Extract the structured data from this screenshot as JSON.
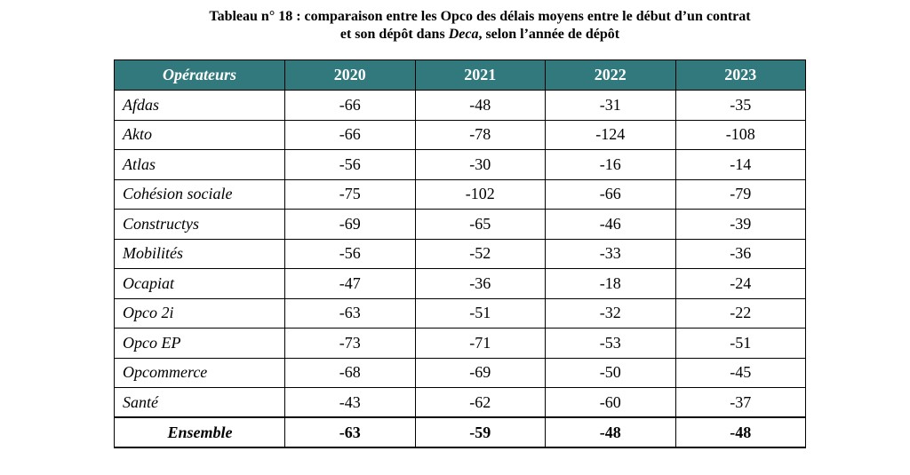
{
  "title": {
    "line1": "Tableau n° 18 : comparaison entre les Opco des délais moyens entre le début d’un contrat",
    "line2_prefix": "et son dépôt dans ",
    "line2_italic": "Deca",
    "line2_suffix": ", selon l’année de dépôt"
  },
  "table": {
    "headers": [
      "Opérateurs",
      "2020",
      "2021",
      "2022",
      "2023"
    ],
    "rows": [
      {
        "op": "Afdas",
        "v": [
          "-66",
          "-48",
          "-31",
          "-35"
        ]
      },
      {
        "op": "Akto",
        "v": [
          "-66",
          "-78",
          "-124",
          "-108"
        ]
      },
      {
        "op": "Atlas",
        "v": [
          "-56",
          "-30",
          "-16",
          "-14"
        ]
      },
      {
        "op": "Cohésion sociale",
        "v": [
          "-75",
          "-102",
          "-66",
          "-79"
        ]
      },
      {
        "op": "Constructys",
        "v": [
          "-69",
          "-65",
          "-46",
          "-39"
        ]
      },
      {
        "op": "Mobilités",
        "v": [
          "-56",
          "-52",
          "-33",
          "-36"
        ]
      },
      {
        "op": "Ocapiat",
        "v": [
          "-47",
          "-36",
          "-18",
          "-24"
        ]
      },
      {
        "op": "Opco 2i",
        "v": [
          "-63",
          "-51",
          "-32",
          "-22"
        ]
      },
      {
        "op": "Opco EP",
        "v": [
          "-73",
          "-71",
          "-53",
          "-51"
        ]
      },
      {
        "op": "Opcommerce",
        "v": [
          "-68",
          "-69",
          "-50",
          "-45"
        ]
      },
      {
        "op": "Santé",
        "v": [
          "-43",
          "-62",
          "-60",
          "-37"
        ]
      }
    ],
    "total": {
      "op": "Ensemble",
      "v": [
        "-63",
        "-59",
        "-48",
        "-48"
      ]
    }
  },
  "colors": {
    "header_bg": "#31797c",
    "header_text": "#ffffff"
  }
}
